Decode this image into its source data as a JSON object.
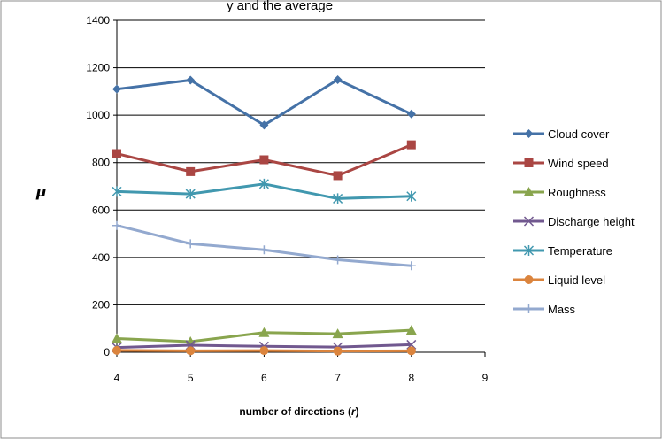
{
  "chart_data": {
    "type": "line",
    "title": "",
    "top_caption": "y and the average",
    "xlabel_main": "number of directions (",
    "xlabel_var": "r",
    "xlabel_end": ")",
    "ylabel": "μ",
    "x": [
      4,
      5,
      6,
      7,
      8
    ],
    "xlim": [
      4,
      9
    ],
    "xticks": [
      "4",
      "5",
      "6",
      "7",
      "8",
      "9"
    ],
    "ylim": [
      0,
      1400
    ],
    "yticks": [
      "0",
      "200",
      "400",
      "600",
      "800",
      "1000",
      "1200",
      "1400"
    ],
    "grid": "horizontal",
    "legend_position": "right",
    "series": [
      {
        "name": "Cloud cover",
        "values": [
          1110,
          1148,
          958,
          1150,
          1005
        ],
        "color": "#4572A7",
        "marker": "diamond"
      },
      {
        "name": "Wind speed",
        "values": [
          838,
          762,
          812,
          745,
          875
        ],
        "color": "#AA4643",
        "marker": "square"
      },
      {
        "name": "Roughness",
        "values": [
          58,
          45,
          83,
          78,
          93
        ],
        "color": "#89A54E",
        "marker": "triangle"
      },
      {
        "name": "Discharge height",
        "values": [
          20,
          30,
          25,
          22,
          32
        ],
        "color": "#71588F",
        "marker": "x"
      },
      {
        "name": "Temperature",
        "values": [
          678,
          668,
          710,
          648,
          658
        ],
        "color": "#4198AF",
        "marker": "asterisk"
      },
      {
        "name": "Liquid level",
        "values": [
          8,
          6,
          7,
          5,
          6
        ],
        "color": "#DB843D",
        "marker": "circle"
      },
      {
        "name": "Mass",
        "values": [
          535,
          458,
          432,
          390,
          365
        ],
        "color": "#93A9CF",
        "marker": "plus"
      }
    ]
  }
}
